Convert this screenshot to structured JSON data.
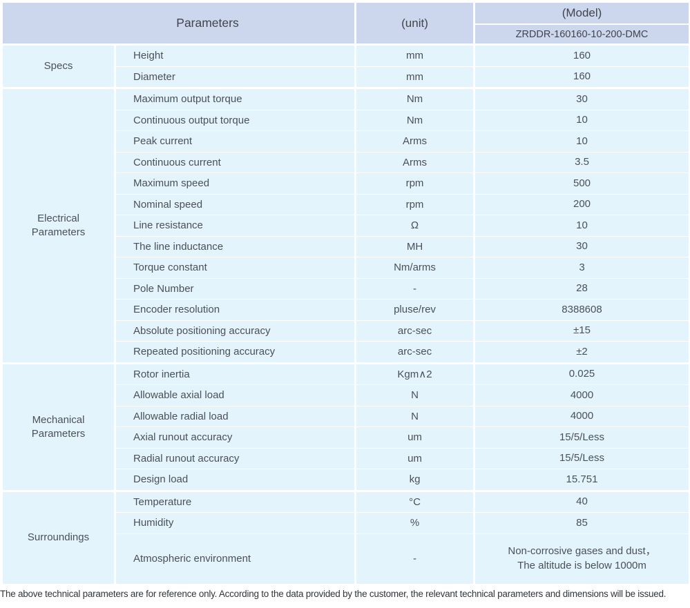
{
  "header": {
    "parameters_label": "Parameters",
    "unit_label": "(unit)",
    "model_label": "(Model)",
    "model_code": "ZRDDR-160160-10-200-DMC"
  },
  "sections": [
    {
      "name": "Specs",
      "rows": [
        {
          "param": "Height",
          "unit": "mm",
          "value": "160"
        },
        {
          "param": "Diameter",
          "unit": "mm",
          "value": "160"
        }
      ]
    },
    {
      "name": "Electrical Parameters",
      "rows": [
        {
          "param": "Maximum output torque",
          "unit": "Nm",
          "value": "30"
        },
        {
          "param": "Continuous output torque",
          "unit": "Nm",
          "value": "10"
        },
        {
          "param": "Peak current",
          "unit": "Arms",
          "value": "10"
        },
        {
          "param": "Continuous current",
          "unit": "Arms",
          "value": "3.5"
        },
        {
          "param": "Maximum speed",
          "unit": "rpm",
          "value": "500"
        },
        {
          "param": "Nominal speed",
          "unit": "rpm",
          "value": "200"
        },
        {
          "param": "Line resistance",
          "unit": "Ω",
          "value": "10"
        },
        {
          "param": "The line inductance",
          "unit": "MH",
          "value": "30"
        },
        {
          "param": "Torque constant",
          "unit": "Nm/arms",
          "value": "3"
        },
        {
          "param": "Pole Number",
          "unit": "-",
          "value": "28"
        },
        {
          "param": "Encoder resolution",
          "unit": "pluse/rev",
          "value": "8388608"
        },
        {
          "param": "Absolute positioning accuracy",
          "unit": "arc-sec",
          "value": "±15"
        },
        {
          "param": "Repeated positioning accuracy",
          "unit": "arc-sec",
          "value": "±2"
        }
      ]
    },
    {
      "name": "Mechanical Parameters",
      "rows": [
        {
          "param": "Rotor inertia",
          "unit": "Kgm∧2",
          "value": "0.025"
        },
        {
          "param": "Allowable axial load",
          "unit": "N",
          "value": "4000"
        },
        {
          "param": "Allowable radial load",
          "unit": "N",
          "value": "4000"
        },
        {
          "param": "Axial runout accuracy",
          "unit": "um",
          "value": "15/5/Less"
        },
        {
          "param": "Radial runout accuracy",
          "unit": "um",
          "value": "15/5/Less"
        },
        {
          "param": "Design load",
          "unit": "kg",
          "value": "15.751"
        }
      ]
    },
    {
      "name": "Surroundings",
      "rows": [
        {
          "param": "Temperature",
          "unit": "°C",
          "value": "40"
        },
        {
          "param": "Humidity",
          "unit": "%",
          "value": "85"
        },
        {
          "param": "Atmospheric environment",
          "unit": "-",
          "value": "Non-corrosive gases and dust，\nThe altitude is below 1000m"
        }
      ]
    }
  ],
  "footer": {
    "note": "The above technical parameters are for reference only. According to the data provided by the customer, the relevant technical parameters and dimensions will be issued."
  },
  "colors": {
    "header_bg": "#ccd6ed",
    "row_bg": "#e4f4fc",
    "text": "#4a5057"
  }
}
